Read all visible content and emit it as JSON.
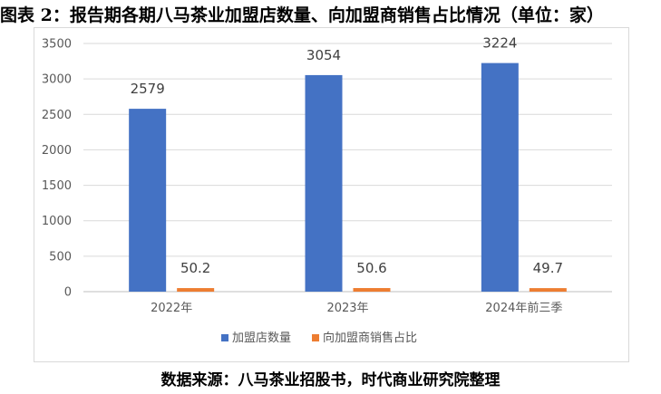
{
  "title": "图表 2：报告期各期八马茶业加盟店数量、向加盟商销售占比情况（单位：家）",
  "source": "数据来源：八马茶业招股书，时代商业研究院整理",
  "colors": {
    "store_count": "#4472c4",
    "sales_share": "#ed7d31",
    "grid": "#d9d9d9",
    "axis": "#bfbfbf"
  },
  "chart_data": {
    "type": "bar",
    "categories": [
      "2022年",
      "2023年",
      "2024年前三季"
    ],
    "series": [
      {
        "name": "加盟店数量",
        "values": [
          2579,
          3054,
          3224
        ]
      },
      {
        "name": "向加盟商销售占比",
        "values": [
          50.2,
          50.6,
          49.7
        ]
      }
    ],
    "ylim": [
      0,
      3500
    ],
    "yticks": [
      0,
      500,
      1000,
      1500,
      2000,
      2500,
      3000,
      3500
    ],
    "grid": true,
    "legend_position": "bottom"
  }
}
